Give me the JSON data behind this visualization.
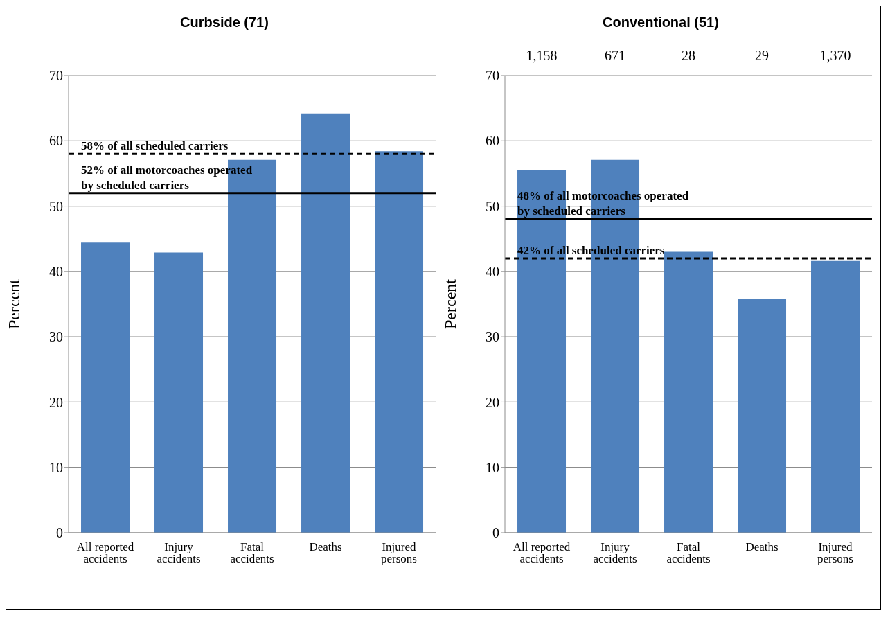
{
  "chart_data": [
    {
      "type": "bar",
      "title": "Curbside (71)",
      "ylabel": "Percent",
      "categories": [
        "All reported accidents",
        "Injury accidents",
        "Fatal accidents",
        "Deaths",
        "Injured persons"
      ],
      "values": [
        44.4,
        42.9,
        57.1,
        64.2,
        58.4
      ],
      "color": "#4f81bd",
      "ylim": [
        0,
        70
      ],
      "yticks": [
        0,
        10,
        20,
        30,
        40,
        50,
        60,
        70
      ],
      "grid": "y",
      "ref_lines": [
        {
          "axis": "y",
          "value": 58,
          "label": "58% of all scheduled carriers",
          "color": "#000000",
          "line_style": "dashed"
        },
        {
          "axis": "y",
          "value": 52,
          "label": "52% of all motorcoaches operated\nby scheduled carriers",
          "color": "#000000",
          "line_style": "solid"
        }
      ]
    },
    {
      "type": "bar",
      "title": "Conventional (51)",
      "ylabel": "Percent",
      "categories": [
        "All reported accidents",
        "Injury accidents",
        "Fatal accidents",
        "Deaths",
        "Injured persons"
      ],
      "values": [
        55.5,
        57.1,
        43.0,
        35.8,
        41.6
      ],
      "color": "#4f81bd",
      "ylim": [
        0,
        70
      ],
      "yticks": [
        0,
        10,
        20,
        30,
        40,
        50,
        60,
        70
      ],
      "grid": "y",
      "ref_lines": [
        {
          "axis": "y",
          "value": 48,
          "label": "48% of all motorcoaches operated\nby scheduled carriers",
          "color": "#000000",
          "line_style": "solid"
        },
        {
          "axis": "y",
          "value": 42,
          "label": "42% of all scheduled carriers",
          "color": "#000000",
          "line_style": "dashed"
        }
      ],
      "annotations": [
        "1,158",
        "671",
        "28",
        "29",
        "1,370"
      ]
    }
  ]
}
